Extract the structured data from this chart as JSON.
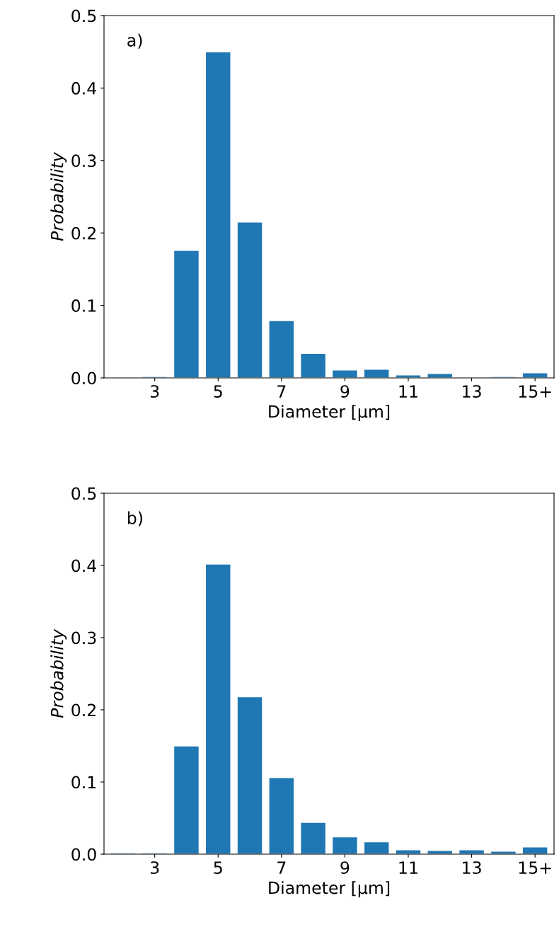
{
  "chart_data": [
    {
      "type": "bar",
      "categories": [
        null,
        "3",
        null,
        "5",
        null,
        "7",
        null,
        "9",
        null,
        "11",
        null,
        "13",
        null,
        "15+"
      ],
      "values": [
        0.001,
        0.002,
        0.176,
        0.45,
        0.215,
        0.079,
        0.034,
        0.011,
        0.012,
        0.004,
        0.006,
        null,
        0.002,
        0.007
      ],
      "color": "#1f77b4",
      "xlabel": "Diameter [µm]",
      "ylabel": "Probability",
      "ylim": [
        0,
        0.5
      ],
      "yticks": [
        {
          "value": 0,
          "label": "0.0"
        },
        0.1,
        0.2,
        0.3,
        0.4,
        0.5
      ],
      "annotations": [
        "a)"
      ],
      "grid": false
    },
    {
      "type": "bar",
      "categories": [
        null,
        "3",
        null,
        "5",
        null,
        "7",
        null,
        "9",
        null,
        "11",
        null,
        "13",
        null,
        "15+"
      ],
      "values": [
        0.002,
        0.002,
        0.15,
        0.402,
        0.218,
        0.106,
        0.044,
        0.024,
        0.017,
        0.006,
        0.005,
        0.006,
        0.004,
        0.01
      ],
      "color": "#1f77b4",
      "xlabel": "Diameter [µm]",
      "ylabel": "Probability",
      "ylim": [
        0,
        0.5
      ],
      "yticks": [
        {
          "value": 0,
          "label": "0.0"
        },
        0.1,
        0.2,
        0.3,
        0.4,
        0.5
      ],
      "annotations": [
        "b)"
      ],
      "grid": false
    }
  ]
}
